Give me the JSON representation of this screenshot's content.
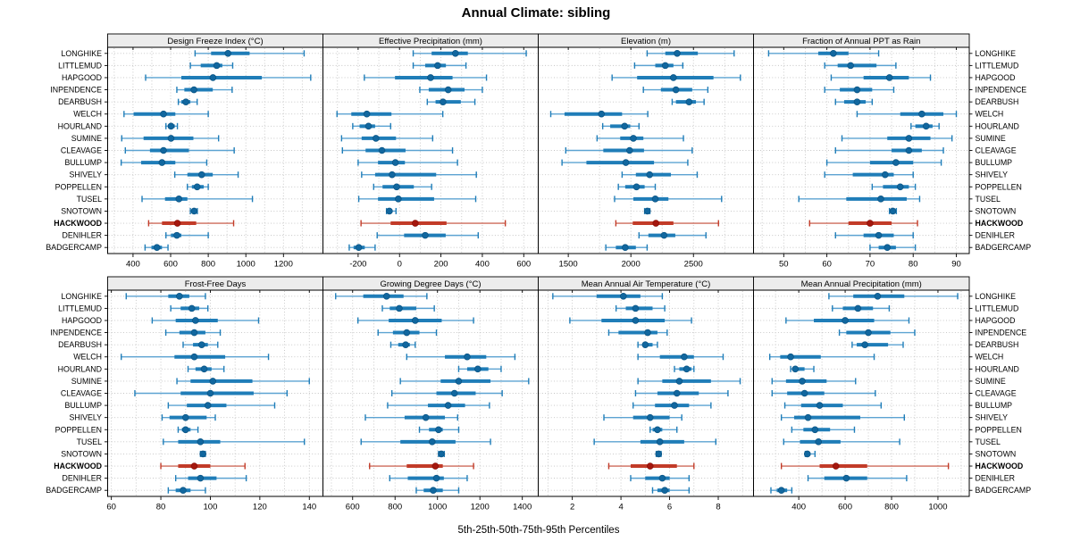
{
  "chart_data": {
    "type": "dotplot-intervals",
    "title": "Annual Climate: sibling",
    "caption": "5th-25th-50th-75th-95th Percentiles",
    "percentiles": [
      5,
      25,
      50,
      75,
      95
    ],
    "legend_position": "none",
    "grid": {
      "rows": 2,
      "cols": 4,
      "gridlines": "dotted"
    },
    "sites": [
      "LONGHIKE",
      "LITTLEMUD",
      "HAPGOOD",
      "INPENDENCE",
      "DEARBUSH",
      "WELCH",
      "HOURLAND",
      "SUMINE",
      "CLEAVAGE",
      "BULLUMP",
      "SHIVELY",
      "POPPELLEN",
      "TUSEL",
      "SNOTOWN",
      "HACKWOOD",
      "DENIHLER",
      "BADGERCAMP"
    ],
    "highlight_site": "HACKWOOD",
    "colors": {
      "blue_whisker": "#5ca3d2",
      "blue_bar": "#1f7db8",
      "blue_dot": "#11679f",
      "blue_dot_edge": "#0b5585",
      "red_whisker": "#cd6a5a",
      "red_bar": "#c23b28",
      "red_dot": "#a5170e",
      "red_dot_edge": "#8c120a",
      "strip_fill": "#ececec",
      "grid_dot": "#c3c3c3",
      "border": "#000000"
    },
    "panels": [
      {
        "label": "Design Freeze Index (°C)",
        "row": 0,
        "col": 0,
        "xlim": [
          265,
          1410
        ],
        "ticks": [
          400,
          600,
          800,
          1000,
          1200
        ],
        "minor_step": 100,
        "values": [
          [
            730,
            815,
            905,
            1020,
            1310
          ],
          [
            705,
            760,
            845,
            875,
            930
          ],
          [
            467,
            657,
            825,
            1085,
            1345
          ],
          [
            633,
            673,
            724,
            824,
            927
          ],
          [
            641,
            657,
            681,
            705,
            741
          ],
          [
            352,
            403,
            562,
            625,
            800
          ],
          [
            575,
            586,
            602,
            622,
            636
          ],
          [
            340,
            456,
            602,
            721,
            855
          ],
          [
            359,
            490,
            562,
            697,
            938
          ],
          [
            337,
            443,
            554,
            625,
            792
          ],
          [
            622,
            689,
            765,
            824,
            959
          ],
          [
            689,
            713,
            741,
            776,
            800
          ],
          [
            448,
            570,
            644,
            689,
            1035
          ],
          [
            705,
            715,
            725,
            735,
            742
          ],
          [
            483,
            554,
            636,
            736,
            935
          ],
          [
            575,
            602,
            633,
            657,
            800
          ],
          [
            464,
            498,
            527,
            554,
            586
          ]
        ]
      },
      {
        "label": "Effective Precipitation (mm)",
        "row": 0,
        "col": 1,
        "xlim": [
          -370,
          670
        ],
        "ticks": [
          -200,
          0,
          200,
          400,
          600
        ],
        "minor_step": 100,
        "values": [
          [
            66,
            155,
            270,
            330,
            612
          ],
          [
            66,
            124,
            184,
            224,
            321
          ],
          [
            -170,
            -22,
            150,
            256,
            420
          ],
          [
            98,
            141,
            235,
            314,
            400
          ],
          [
            134,
            174,
            210,
            296,
            364
          ],
          [
            -302,
            -233,
            -158,
            -39,
            209
          ],
          [
            -226,
            -193,
            -150,
            -118,
            -43
          ],
          [
            -280,
            -183,
            -114,
            -17,
            160
          ],
          [
            -276,
            -164,
            -85,
            29,
            256
          ],
          [
            -200,
            -104,
            -20,
            26,
            280
          ],
          [
            -183,
            -118,
            -36,
            177,
            371
          ],
          [
            -125,
            -82,
            -14,
            69,
            155
          ],
          [
            -197,
            -104,
            -6,
            167,
            368
          ],
          [
            -63,
            -57,
            -49,
            -35,
            -17
          ],
          [
            -186,
            -43,
            76,
            227,
            511
          ],
          [
            -108,
            22,
            124,
            223,
            380
          ],
          [
            -243,
            -222,
            -197,
            -168,
            -118
          ]
        ]
      },
      {
        "label": "Elevation (m)",
        "row": 0,
        "col": 2,
        "xlim": [
          1260,
          2980
        ],
        "ticks": [
          1500,
          2000,
          2500
        ],
        "minor_step": 250,
        "values": [
          [
            2130,
            2275,
            2370,
            2535,
            2825
          ],
          [
            2030,
            2195,
            2275,
            2340,
            2415
          ],
          [
            1850,
            2050,
            2340,
            2660,
            2875
          ],
          [
            2100,
            2240,
            2360,
            2490,
            2615
          ],
          [
            2330,
            2360,
            2465,
            2520,
            2585
          ],
          [
            1360,
            1470,
            1765,
            1930,
            2135
          ],
          [
            1775,
            1835,
            1950,
            1995,
            2065
          ],
          [
            1730,
            1915,
            2020,
            2100,
            2420
          ],
          [
            1480,
            1780,
            1990,
            2105,
            2490
          ],
          [
            1450,
            1645,
            1960,
            2185,
            2455
          ],
          [
            1930,
            2040,
            2150,
            2320,
            2530
          ],
          [
            1900,
            1955,
            2045,
            2110,
            2195
          ],
          [
            1870,
            2020,
            2195,
            2300,
            2725
          ],
          [
            2110,
            2122,
            2132,
            2142,
            2152
          ],
          [
            1880,
            2015,
            2200,
            2340,
            2700
          ],
          [
            2065,
            2140,
            2265,
            2355,
            2600
          ],
          [
            1800,
            1880,
            1955,
            2040,
            2130
          ]
        ]
      },
      {
        "label": "Fraction of Annual PPT as Rain",
        "row": 0,
        "col": 3,
        "xlim": [
          43,
          93
        ],
        "ticks": [
          50,
          60,
          70,
          80,
          90
        ],
        "minor_step": 5,
        "values": [
          [
            46.5,
            58,
            61.5,
            65,
            72
          ],
          [
            59.5,
            62.5,
            65.5,
            71.5,
            76
          ],
          [
            61,
            68.5,
            74.5,
            79,
            84
          ],
          [
            59.5,
            63,
            67,
            70.5,
            75.5
          ],
          [
            62,
            64,
            67,
            69,
            70.5
          ],
          [
            67,
            77,
            82,
            87,
            90
          ],
          [
            79.5,
            80.5,
            83,
            84.5,
            86
          ],
          [
            63.5,
            74,
            79,
            84,
            89
          ],
          [
            62,
            75,
            79,
            82,
            87
          ],
          [
            60,
            70,
            76,
            80,
            86.5
          ],
          [
            59.5,
            66,
            73.5,
            75.5,
            80
          ],
          [
            70.5,
            73,
            77,
            79,
            80.5
          ],
          [
            53.5,
            64.5,
            72.5,
            78.5,
            81.5
          ],
          [
            74.5,
            74.9,
            75.3,
            75.7,
            76.1
          ],
          [
            56,
            65,
            70,
            75,
            81
          ],
          [
            62,
            68.5,
            72,
            75.5,
            80
          ],
          [
            70,
            72,
            74,
            76,
            80.5
          ]
        ]
      },
      {
        "label": "Frost-Free Days",
        "row": 1,
        "col": 0,
        "xlim": [
          58.5,
          145.5
        ],
        "ticks": [
          60,
          80,
          100,
          120,
          140
        ],
        "minor_step": 10,
        "values": [
          [
            66,
            83,
            87.5,
            91.5,
            98
          ],
          [
            84,
            88,
            92.5,
            95.5,
            99
          ],
          [
            76.5,
            86,
            94,
            103,
            119.5
          ],
          [
            82,
            87.5,
            93.5,
            98,
            104
          ],
          [
            89,
            93,
            96.5,
            99,
            103
          ],
          [
            64,
            85.5,
            93.5,
            106,
            123.5
          ],
          [
            91,
            94,
            97.5,
            100.5,
            105.5
          ],
          [
            86.5,
            92,
            101,
            117,
            140
          ],
          [
            69.5,
            88,
            100,
            117.5,
            131
          ],
          [
            83,
            90.5,
            99,
            106.5,
            126
          ],
          [
            80.5,
            83.5,
            90,
            98.5,
            102
          ],
          [
            87,
            88.5,
            90,
            92,
            95
          ],
          [
            81,
            87,
            96,
            104,
            138
          ],
          [
            96,
            96.5,
            97,
            97.5,
            98
          ],
          [
            80,
            87,
            93.5,
            100,
            114
          ],
          [
            86,
            91,
            96,
            102.5,
            114.5
          ],
          [
            83,
            86,
            89,
            92,
            98
          ]
        ]
      },
      {
        "label": "Growing Degree Days (°C)",
        "row": 1,
        "col": 1,
        "xlim": [
          460,
          1475
        ],
        "ticks": [
          600,
          800,
          1000,
          1200,
          1400
        ],
        "minor_step": 100,
        "values": [
          [
            520,
            650,
            760,
            840,
            950
          ],
          [
            740,
            775,
            820,
            900,
            985
          ],
          [
            625,
            770,
            895,
            1020,
            1170
          ],
          [
            720,
            790,
            855,
            915,
            995
          ],
          [
            780,
            815,
            850,
            870,
            895
          ],
          [
            855,
            1035,
            1140,
            1230,
            1365
          ],
          [
            1100,
            1140,
            1190,
            1240,
            1300
          ],
          [
            825,
            1015,
            1100,
            1250,
            1430
          ],
          [
            785,
            995,
            1080,
            1180,
            1305
          ],
          [
            765,
            955,
            1050,
            1130,
            1245
          ],
          [
            660,
            845,
            945,
            1035,
            1095
          ],
          [
            915,
            960,
            1005,
            1025,
            1100
          ],
          [
            640,
            825,
            975,
            1085,
            1250
          ],
          [
            1005,
            1012,
            1018,
            1025,
            1032
          ],
          [
            680,
            855,
            990,
            1025,
            1170
          ],
          [
            775,
            860,
            995,
            1030,
            1140
          ],
          [
            900,
            935,
            980,
            1025,
            1100
          ]
        ]
      },
      {
        "label": "Mean Annual Air Temperature (°C)",
        "row": 1,
        "col": 2,
        "xlim": [
          0.6,
          9.45
        ],
        "ticks": [
          2,
          4,
          6,
          8
        ],
        "minor_step": 1,
        "values": [
          [
            1.2,
            3.0,
            4.1,
            4.8,
            5.7
          ],
          [
            3.8,
            4.2,
            4.6,
            5.3,
            5.8
          ],
          [
            1.9,
            3.2,
            4.6,
            5.8,
            6.9
          ],
          [
            3.5,
            3.9,
            5.1,
            5.5,
            5.9
          ],
          [
            4.7,
            4.9,
            5.0,
            5.3,
            5.5
          ],
          [
            4.7,
            5.6,
            6.6,
            7.0,
            8.2
          ],
          [
            6.2,
            6.4,
            6.7,
            6.9,
            7.0
          ],
          [
            4.7,
            5.7,
            6.4,
            7.7,
            8.9
          ],
          [
            4.6,
            5.5,
            6.3,
            7.2,
            8.4
          ],
          [
            4.5,
            5.4,
            6.2,
            6.8,
            7.7
          ],
          [
            3.3,
            4.5,
            5.2,
            6.0,
            6.5
          ],
          [
            5.2,
            5.3,
            5.5,
            5.7,
            6.3
          ],
          [
            2.9,
            4.8,
            5.6,
            6.6,
            7.9
          ],
          [
            5.45,
            5.5,
            5.55,
            5.6,
            5.65
          ],
          [
            3.5,
            4.4,
            5.2,
            6.3,
            7.0
          ],
          [
            4.4,
            5.0,
            5.7,
            6.0,
            6.8
          ],
          [
            5.3,
            5.5,
            5.8,
            6.0,
            6.8
          ]
        ]
      },
      {
        "label": "Mean Annual Precipitation (mm)",
        "row": 1,
        "col": 3,
        "xlim": [
          205,
          1135
        ],
        "ticks": [
          400,
          600,
          800,
          1000
        ],
        "minor_step": 100,
        "values": [
          [
            530,
            635,
            740,
            855,
            1085
          ],
          [
            545,
            590,
            655,
            720,
            790
          ],
          [
            345,
            465,
            600,
            725,
            875
          ],
          [
            575,
            605,
            700,
            795,
            900
          ],
          [
            630,
            650,
            685,
            785,
            850
          ],
          [
            275,
            320,
            365,
            495,
            725
          ],
          [
            365,
            375,
            385,
            425,
            465
          ],
          [
            285,
            345,
            415,
            520,
            645
          ],
          [
            285,
            350,
            425,
            510,
            730
          ],
          [
            340,
            410,
            490,
            590,
            755
          ],
          [
            325,
            380,
            440,
            665,
            855
          ],
          [
            370,
            420,
            470,
            535,
            640
          ],
          [
            335,
            405,
            485,
            580,
            835
          ],
          [
            428,
            432,
            437,
            450,
            470
          ],
          [
            325,
            490,
            560,
            695,
            1045
          ],
          [
            440,
            510,
            605,
            695,
            865
          ],
          [
            280,
            305,
            325,
            350,
            370
          ]
        ]
      }
    ]
  }
}
